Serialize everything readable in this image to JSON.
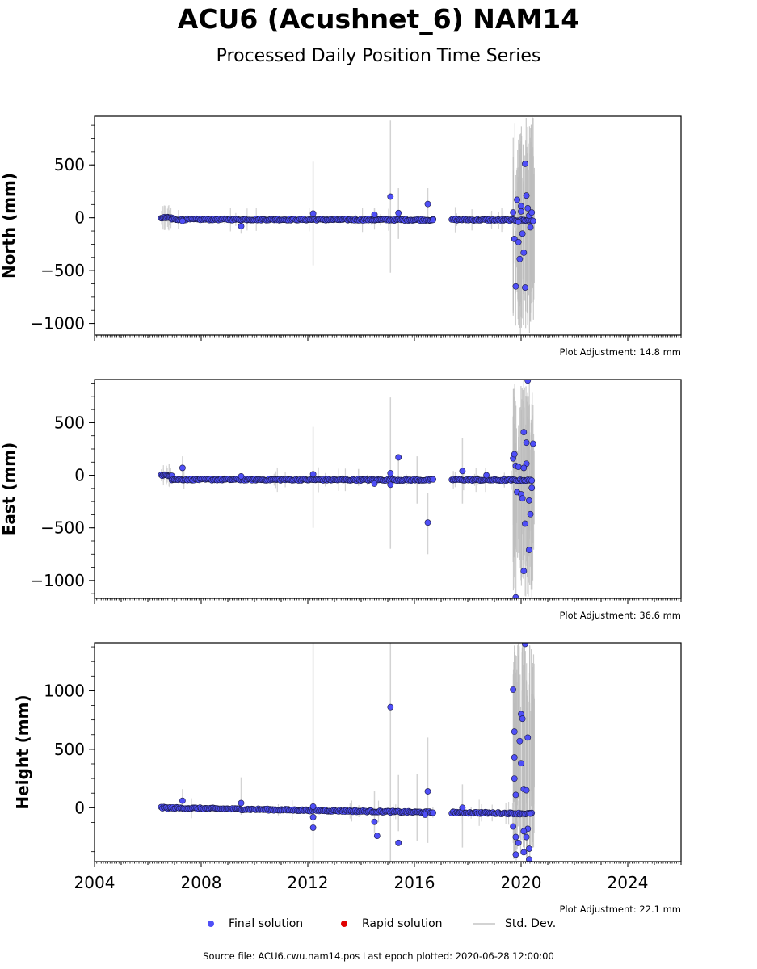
{
  "title": "ACU6 (Acushnet_6) NAM14",
  "subtitle": "Processed Daily Position Time Series",
  "legend": {
    "final_label": "Final solution",
    "rapid_label": "Rapid solution",
    "std_label": "Std. Dev.",
    "final_color": "#4f4ff7",
    "rapid_color": "#e00000",
    "std_color": "#d3d3d3"
  },
  "footer": "Source file: ACU6.cwu.nam14.pos  Last epoch plotted: 2020-06-28 12:00:00",
  "chart_data": [
    {
      "type": "scatter",
      "ylabel": "North (mm)",
      "xlim": [
        2004,
        2026
      ],
      "ylim": [
        -1110,
        960
      ],
      "yticks": [
        -1000,
        -500,
        0,
        500
      ],
      "xticks": [
        2004,
        2008,
        2012,
        2016,
        2020,
        2024
      ],
      "adjustment": "Plot Adjustment: 14.8 mm",
      "grid": false,
      "segments": [
        {
          "x0": 2006.5,
          "x1": 2006.9,
          "y0": 0,
          "y1": 0
        },
        {
          "x0": 2006.9,
          "x1": 2016.7,
          "y0": -15,
          "y1": -20
        },
        {
          "x0": 2017.4,
          "x1": 2020.4,
          "y0": -18,
          "y1": -24
        }
      ],
      "outliers": [
        {
          "x": 2009.5,
          "y": -80
        },
        {
          "x": 2012.2,
          "y": 40
        },
        {
          "x": 2014.5,
          "y": 30
        },
        {
          "x": 2015.1,
          "y": 200
        },
        {
          "x": 2015.4,
          "y": 45
        },
        {
          "x": 2016.5,
          "y": 130
        },
        {
          "x": 2016.7,
          "y": -20
        },
        {
          "x": 2007.3,
          "y": -30
        },
        {
          "x": 2019.7,
          "y": 50
        },
        {
          "x": 2019.75,
          "y": -200
        },
        {
          "x": 2019.8,
          "y": -650
        },
        {
          "x": 2019.85,
          "y": 170
        },
        {
          "x": 2019.9,
          "y": -230
        },
        {
          "x": 2019.95,
          "y": -390
        },
        {
          "x": 2020.0,
          "y": 110
        },
        {
          "x": 2020.05,
          "y": -150
        },
        {
          "x": 2020.1,
          "y": -330
        },
        {
          "x": 2020.15,
          "y": 510
        },
        {
          "x": 2020.15,
          "y": -660
        },
        {
          "x": 2020.2,
          "y": 210
        },
        {
          "x": 2020.25,
          "y": 90
        },
        {
          "x": 2020.3,
          "y": 20
        },
        {
          "x": 2020.35,
          "y": -90
        },
        {
          "x": 2020.4,
          "y": 50
        },
        {
          "x": 2020.45,
          "y": -30
        },
        {
          "x": 2019.9,
          "y": -40
        },
        {
          "x": 2020.0,
          "y": 60
        }
      ],
      "errorbars": [
        {
          "x": 2009.5,
          "lo": -150,
          "hi": 20
        },
        {
          "x": 2012.2,
          "lo": -450,
          "hi": 530
        },
        {
          "x": 2015.1,
          "lo": -520,
          "hi": 920
        },
        {
          "x": 2015.4,
          "lo": -200,
          "hi": 280
        },
        {
          "x": 2016.5,
          "lo": -50,
          "hi": 280
        },
        {
          "x": 2014.5,
          "lo": -60,
          "hi": 90
        }
      ],
      "noise_band": {
        "x0": 2019.7,
        "x1": 2020.5
      }
    },
    {
      "type": "scatter",
      "ylabel": "East (mm)",
      "xlim": [
        2004,
        2026
      ],
      "ylim": [
        -1170,
        910
      ],
      "yticks": [
        -1000,
        -500,
        0,
        500
      ],
      "xticks": [
        2004,
        2008,
        2012,
        2016,
        2020,
        2024
      ],
      "adjustment": "Plot Adjustment: 36.6 mm",
      "grid": false,
      "segments": [
        {
          "x0": 2006.5,
          "x1": 2006.9,
          "y0": 0,
          "y1": 0
        },
        {
          "x0": 2006.9,
          "x1": 2016.7,
          "y0": -40,
          "y1": -45
        },
        {
          "x0": 2017.4,
          "x1": 2020.4,
          "y0": -42,
          "y1": -48
        }
      ],
      "outliers": [
        {
          "x": 2007.3,
          "y": 70
        },
        {
          "x": 2009.5,
          "y": -10
        },
        {
          "x": 2012.2,
          "y": 10
        },
        {
          "x": 2014.5,
          "y": -80
        },
        {
          "x": 2015.1,
          "y": 20
        },
        {
          "x": 2015.1,
          "y": -90
        },
        {
          "x": 2015.4,
          "y": 170
        },
        {
          "x": 2016.5,
          "y": -450
        },
        {
          "x": 2017.8,
          "y": 40
        },
        {
          "x": 2018.7,
          "y": 0
        },
        {
          "x": 2019.7,
          "y": 160
        },
        {
          "x": 2019.75,
          "y": 200
        },
        {
          "x": 2019.8,
          "y": -1160
        },
        {
          "x": 2019.8,
          "y": 90
        },
        {
          "x": 2019.85,
          "y": -160
        },
        {
          "x": 2019.9,
          "y": 80
        },
        {
          "x": 2020.0,
          "y": -180
        },
        {
          "x": 2020.05,
          "y": -220
        },
        {
          "x": 2020.1,
          "y": 410
        },
        {
          "x": 2020.1,
          "y": -910
        },
        {
          "x": 2020.15,
          "y": -460
        },
        {
          "x": 2020.2,
          "y": 310
        },
        {
          "x": 2020.25,
          "y": 900
        },
        {
          "x": 2020.3,
          "y": -710
        },
        {
          "x": 2020.35,
          "y": -370
        },
        {
          "x": 2020.4,
          "y": -120
        },
        {
          "x": 2020.45,
          "y": 300
        },
        {
          "x": 2020.2,
          "y": 110
        },
        {
          "x": 2020.3,
          "y": -240
        },
        {
          "x": 2020.1,
          "y": 70
        }
      ],
      "errorbars": [
        {
          "x": 2007.3,
          "lo": -20,
          "hi": 180
        },
        {
          "x": 2012.2,
          "lo": -500,
          "hi": 460
        },
        {
          "x": 2015.1,
          "lo": -700,
          "hi": 740
        },
        {
          "x": 2015.4,
          "lo": -50,
          "hi": 180
        },
        {
          "x": 2016.1,
          "lo": -270,
          "hi": 180
        },
        {
          "x": 2016.5,
          "lo": -750,
          "hi": -170
        },
        {
          "x": 2017.8,
          "lo": -270,
          "hi": 350
        },
        {
          "x": 2013.9,
          "lo": -100,
          "hi": 60
        }
      ],
      "noise_band": {
        "x0": 2019.7,
        "x1": 2020.5
      }
    },
    {
      "type": "scatter",
      "ylabel": "Height (mm)",
      "xlim": [
        2004,
        2026
      ],
      "ylim": [
        -460,
        1410
      ],
      "yticks": [
        0,
        500,
        1000
      ],
      "xticks": [
        2004,
        2008,
        2012,
        2016,
        2020,
        2024
      ],
      "xtick_labels": [
        "2004",
        "2008",
        "2012",
        "2016",
        "2020",
        "2024"
      ],
      "adjustment": "Plot Adjustment: 22.1 mm",
      "grid": false,
      "segments": [
        {
          "x0": 2006.5,
          "x1": 2016.7,
          "y0": 0,
          "y1": -40
        },
        {
          "x0": 2017.4,
          "x1": 2020.4,
          "y0": -40,
          "y1": -50
        }
      ],
      "outliers": [
        {
          "x": 2007.3,
          "y": 60
        },
        {
          "x": 2009.5,
          "y": 40
        },
        {
          "x": 2012.2,
          "y": 10
        },
        {
          "x": 2012.2,
          "y": -80
        },
        {
          "x": 2012.2,
          "y": -170
        },
        {
          "x": 2014.5,
          "y": -120
        },
        {
          "x": 2014.6,
          "y": -240
        },
        {
          "x": 2015.1,
          "y": 860
        },
        {
          "x": 2015.4,
          "y": -300
        },
        {
          "x": 2016.5,
          "y": 140
        },
        {
          "x": 2016.4,
          "y": -60
        },
        {
          "x": 2017.8,
          "y": 0
        },
        {
          "x": 2019.7,
          "y": 1010
        },
        {
          "x": 2019.75,
          "y": 650
        },
        {
          "x": 2019.75,
          "y": 430
        },
        {
          "x": 2019.75,
          "y": 250
        },
        {
          "x": 2019.8,
          "y": 110
        },
        {
          "x": 2019.7,
          "y": -160
        },
        {
          "x": 2019.8,
          "y": -250
        },
        {
          "x": 2019.8,
          "y": -400
        },
        {
          "x": 2019.9,
          "y": -300
        },
        {
          "x": 2019.95,
          "y": 570
        },
        {
          "x": 2020.0,
          "y": 800
        },
        {
          "x": 2020.05,
          "y": 760
        },
        {
          "x": 2020.0,
          "y": 380
        },
        {
          "x": 2020.1,
          "y": 160
        },
        {
          "x": 2020.1,
          "y": -380
        },
        {
          "x": 2020.15,
          "y": 1400
        },
        {
          "x": 2020.2,
          "y": 150
        },
        {
          "x": 2020.25,
          "y": 600
        },
        {
          "x": 2020.25,
          "y": -180
        },
        {
          "x": 2020.3,
          "y": -350
        },
        {
          "x": 2020.35,
          "y": -50
        },
        {
          "x": 2020.1,
          "y": -200
        },
        {
          "x": 2020.2,
          "y": -250
        },
        {
          "x": 2020.3,
          "y": -440
        }
      ],
      "errorbars": [
        {
          "x": 2007.3,
          "lo": -30,
          "hi": 160
        },
        {
          "x": 2009.5,
          "lo": -60,
          "hi": 260
        },
        {
          "x": 2012.2,
          "lo": -460,
          "hi": 1410
        },
        {
          "x": 2014.5,
          "lo": -220,
          "hi": 140
        },
        {
          "x": 2015.1,
          "lo": -460,
          "hi": 1410
        },
        {
          "x": 2015.4,
          "lo": -200,
          "hi": 280
        },
        {
          "x": 2016.1,
          "lo": -280,
          "hi": 290
        },
        {
          "x": 2016.5,
          "lo": -300,
          "hi": 600
        },
        {
          "x": 2017.8,
          "lo": -340,
          "hi": 200
        }
      ],
      "noise_band": {
        "x0": 2019.7,
        "x1": 2020.5
      }
    }
  ]
}
